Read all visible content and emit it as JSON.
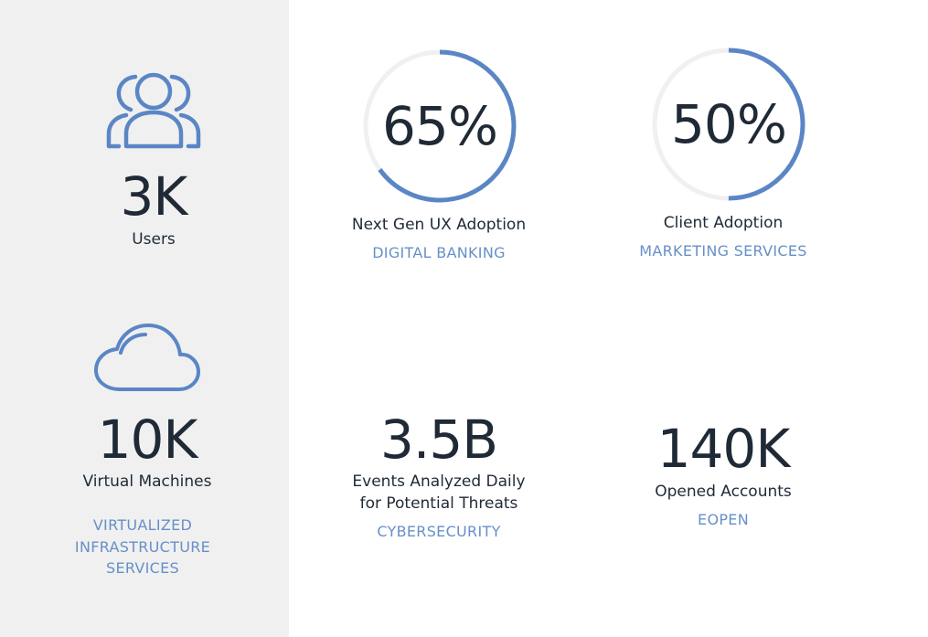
{
  "colors": {
    "accent": "#5b86c5",
    "track": "#f0f0f0",
    "text": "#1f2a36",
    "category": "#6690c8"
  },
  "sidebar": {
    "users": {
      "icon": "users-icon",
      "value": "3K",
      "label": "Users"
    },
    "vms": {
      "icon": "cloud-icon",
      "value": "10K",
      "label": "Virtual Machines",
      "category": [
        "VIRTUALIZED",
        "INFRASTRUCTURE",
        "SERVICES"
      ]
    }
  },
  "metrics": {
    "ux": {
      "value": "65%",
      "progress": 0.65,
      "label": "Next Gen UX Adoption",
      "category": "DIGITAL BANKING"
    },
    "client": {
      "value": "50%",
      "progress": 0.5,
      "label": "Client Adoption",
      "category": "MARKETING SERVICES"
    },
    "events": {
      "value": "3.5B",
      "label_lines": [
        "Events Analyzed Daily",
        "for Potential Threats"
      ],
      "category": "CYBERSECURITY"
    },
    "accounts": {
      "value": "140K",
      "label": "Opened Accounts",
      "category": "EOPEN"
    }
  }
}
